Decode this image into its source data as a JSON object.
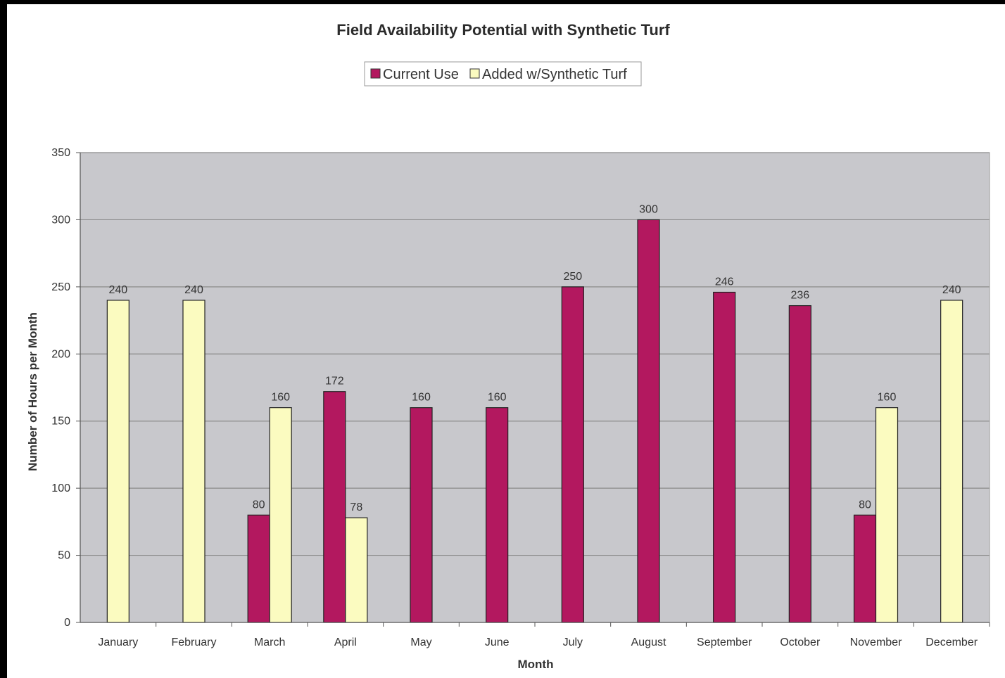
{
  "chart_data": {
    "type": "bar",
    "title": "Field Availability Potential with Synthetic Turf",
    "xlabel": "Month",
    "ylabel": "Number of Hours per Month",
    "ylim": [
      0,
      350
    ],
    "yticks": [
      0,
      50,
      100,
      150,
      200,
      250,
      300,
      350
    ],
    "grid": true,
    "legend_position": "top-center",
    "categories": [
      "January",
      "February",
      "March",
      "April",
      "May",
      "June",
      "July",
      "August",
      "September",
      "October",
      "November",
      "December"
    ],
    "series": [
      {
        "name": "Current Use",
        "color": "#b3185f",
        "values": [
          null,
          null,
          80,
          172,
          160,
          160,
          250,
          300,
          246,
          236,
          80,
          null
        ]
      },
      {
        "name": "Added w/Synthetic Turf",
        "color": "#fbfbc0",
        "values": [
          240,
          240,
          160,
          78,
          null,
          null,
          null,
          null,
          null,
          null,
          160,
          240
        ]
      }
    ],
    "plot_background": "#c8c8cc",
    "gridline_color": "#8a8a8a"
  }
}
